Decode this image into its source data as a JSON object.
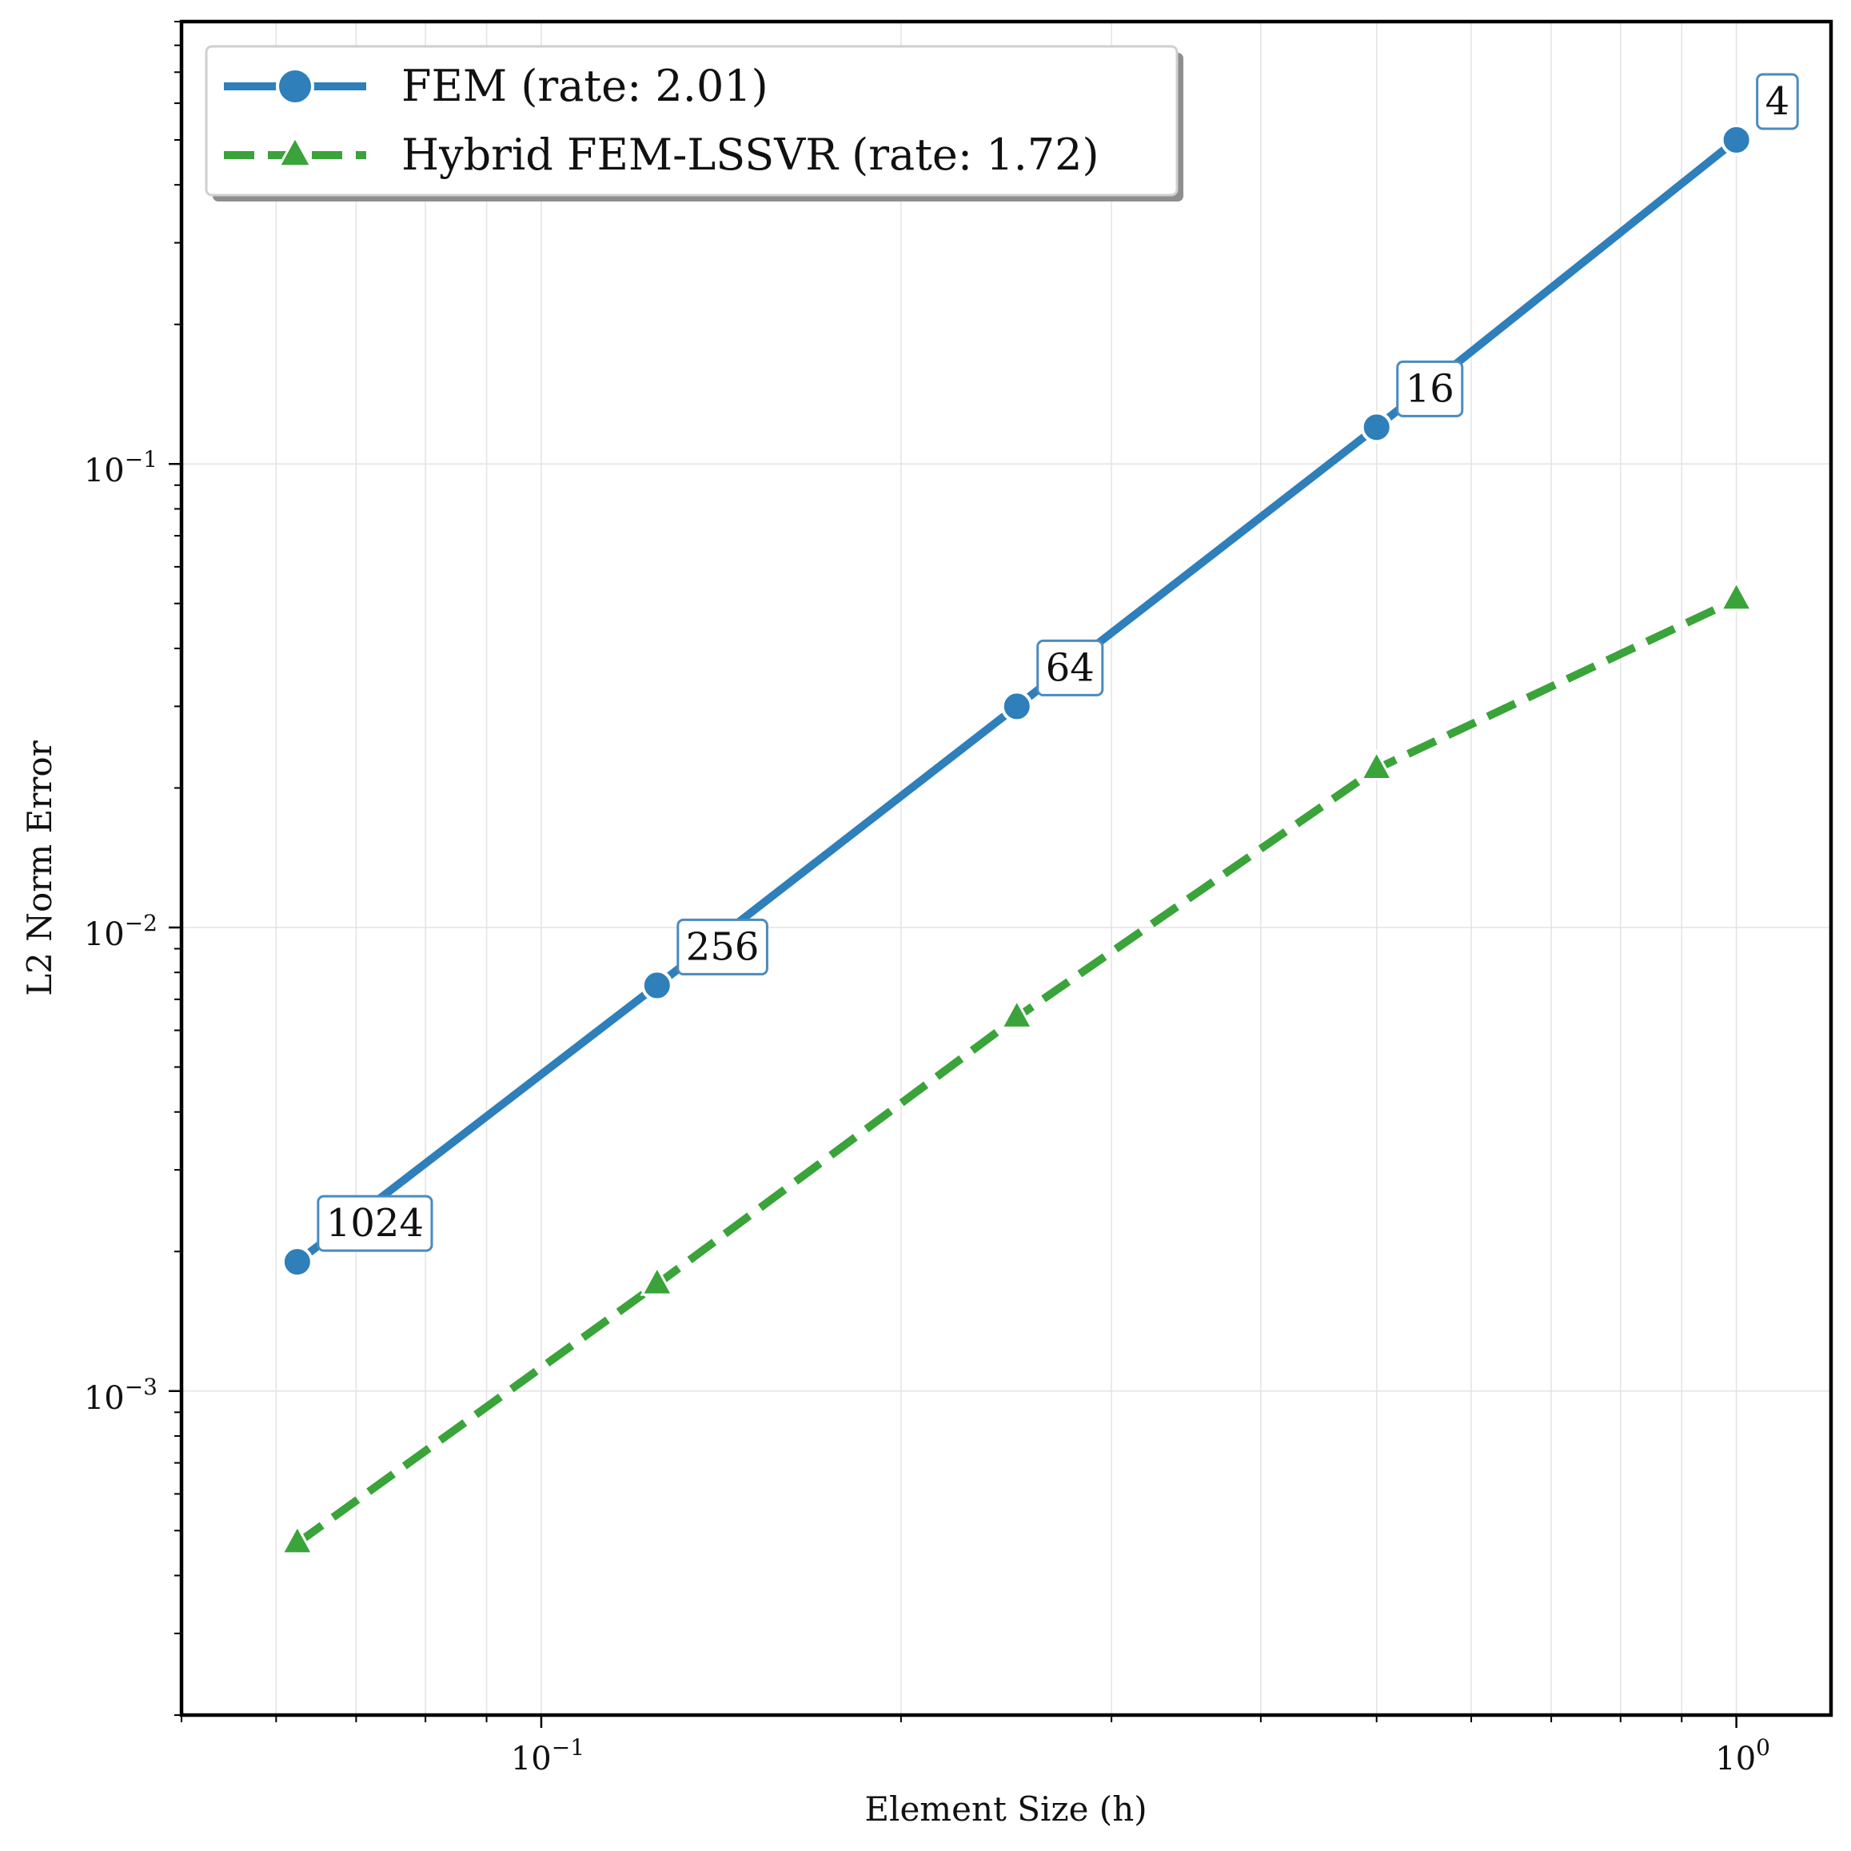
{
  "chart_data": {
    "type": "line",
    "title": "",
    "xlabel": "Element Size (h)",
    "ylabel": "L2 Norm Error",
    "xscale": "log",
    "yscale": "log",
    "xlim": [
      0.05,
      1.2
    ],
    "ylim": [
      0.0002,
      0.9
    ],
    "grid": true,
    "legend_position": "top-left",
    "x_ticks": [
      {
        "value": 0.1,
        "base": "10",
        "exp": "−1"
      },
      {
        "value": 1.0,
        "base": "10",
        "exp": "0"
      }
    ],
    "y_ticks": [
      {
        "value": 0.1,
        "base": "10",
        "exp": "−1"
      },
      {
        "value": 0.01,
        "base": "10",
        "exp": "−2"
      },
      {
        "value": 0.001,
        "base": "10",
        "exp": "−3"
      }
    ],
    "series": [
      {
        "name": "FEM (rate: 2.01)",
        "color": "#2e7fba",
        "line_style": "solid",
        "marker": "circle",
        "x": [
          0.0625,
          0.125,
          0.25,
          0.5,
          1.0
        ],
        "y": [
          0.0019,
          0.0075,
          0.03,
          0.12,
          0.5
        ]
      },
      {
        "name": "Hybrid FEM-LSSVR (rate: 1.72)",
        "color": "#3aa33a",
        "line_style": "dashed",
        "marker": "triangle",
        "x": [
          0.0625,
          0.125,
          0.25,
          0.5,
          1.0
        ],
        "y": [
          0.00047,
          0.0017,
          0.0064,
          0.022,
          0.051
        ]
      }
    ],
    "annotations": [
      {
        "x": 0.0625,
        "y": 0.0019,
        "text": "1024"
      },
      {
        "x": 0.125,
        "y": 0.0075,
        "text": "256"
      },
      {
        "x": 0.25,
        "y": 0.03,
        "text": "64"
      },
      {
        "x": 0.5,
        "y": 0.12,
        "text": "16"
      },
      {
        "x": 1.0,
        "y": 0.5,
        "text": "4"
      }
    ]
  }
}
